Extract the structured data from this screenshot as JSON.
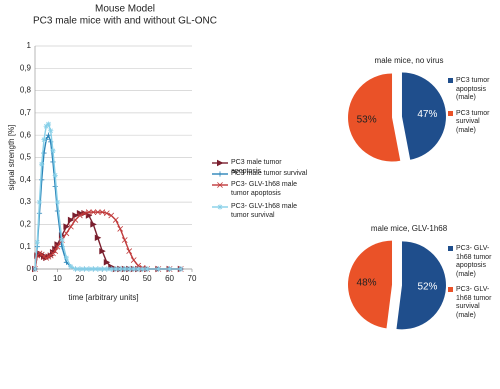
{
  "chart_data": [
    {
      "type": "line",
      "title": "Mouse Model",
      "subtitle": "PC3 male mice with and without GL-ONC",
      "xlabel": "time [arbitrary units]",
      "ylabel": "signal strength [%]",
      "x": [
        0,
        1,
        2,
        3,
        4,
        5,
        6,
        7,
        8,
        9,
        10,
        12,
        14,
        16,
        18,
        20,
        22,
        24,
        26,
        28,
        30,
        32,
        34,
        36,
        38,
        40,
        42,
        44,
        46,
        48,
        50,
        55,
        60,
        65
      ],
      "series": [
        {
          "name": "PC3 male tumor apoptosis",
          "color": "#7a1f2e",
          "marker": "triangle",
          "values": [
            0,
            0.06,
            0.07,
            0.065,
            0.055,
            0.05,
            0.055,
            0.06,
            0.075,
            0.09,
            0.11,
            0.15,
            0.19,
            0.22,
            0.24,
            0.25,
            0.25,
            0.24,
            0.2,
            0.14,
            0.08,
            0.03,
            0.01,
            0,
            0,
            0,
            0,
            0,
            0,
            0,
            0,
            0,
            0,
            0
          ]
        },
        {
          "name": "PC3 male tumor survival",
          "color": "#2b84b8",
          "marker": "plus",
          "values": [
            0,
            0.1,
            0.25,
            0.4,
            0.52,
            0.58,
            0.6,
            0.57,
            0.48,
            0.37,
            0.26,
            0.1,
            0.03,
            0.01,
            0,
            0,
            0,
            0,
            0,
            0,
            0,
            0,
            0,
            0,
            0,
            0,
            0,
            0,
            0,
            0,
            0,
            0,
            0,
            0
          ]
        },
        {
          "name": "PC3- GLV-1h68 male tumor apoptosis",
          "color": "#c0393a",
          "marker": "cross",
          "values": [
            0,
            0.06,
            0.07,
            0.065,
            0.055,
            0.05,
            0.055,
            0.06,
            0.07,
            0.08,
            0.1,
            0.13,
            0.16,
            0.19,
            0.22,
            0.24,
            0.25,
            0.255,
            0.255,
            0.255,
            0.255,
            0.25,
            0.24,
            0.22,
            0.18,
            0.13,
            0.08,
            0.04,
            0.015,
            0.005,
            0,
            0,
            0,
            0
          ]
        },
        {
          "name": "PC3- GLV-1h68  male tumor survival",
          "color": "#86cfe8",
          "marker": "asterisk",
          "values": [
            0,
            0.12,
            0.3,
            0.47,
            0.58,
            0.64,
            0.65,
            0.62,
            0.53,
            0.42,
            0.3,
            0.13,
            0.05,
            0.01,
            0,
            0,
            0,
            0,
            0,
            0,
            0,
            0,
            0,
            0,
            0,
            0,
            0,
            0,
            0,
            0,
            0,
            0,
            0,
            0
          ]
        }
      ],
      "xlim": [
        0,
        70
      ],
      "xticks": [
        0,
        10,
        20,
        30,
        40,
        50,
        60,
        70
      ],
      "ylim": [
        0,
        1
      ],
      "yticks": [
        0,
        {
          "value": 0.1,
          "label": "0,1"
        },
        {
          "value": 0.2,
          "label": "0,2"
        },
        {
          "value": 0.3,
          "label": "0,3"
        },
        {
          "value": 0.4,
          "label": "0,4"
        },
        {
          "value": 0.5,
          "label": "0,5"
        },
        {
          "value": 0.6,
          "label": "0,6"
        },
        {
          "value": 0.7,
          "label": "0,7"
        },
        {
          "value": 0.8,
          "label": "0,8"
        },
        {
          "value": 0.9,
          "label": "0,9"
        },
        1
      ],
      "grid": true
    },
    {
      "type": "pie",
      "title": "male mice, no virus",
      "categories": [
        "PC3 tumor apoptosis (male)",
        "PC3 tumor survival (male)"
      ],
      "values": [
        47,
        53
      ],
      "value_labels": [
        "47%",
        "53%"
      ],
      "colors": [
        "#1f4e8c",
        "#ea5228"
      ]
    },
    {
      "type": "pie",
      "title": "male mice, GLV-1h68",
      "categories": [
        "PC3- GLV-1h68 tumor apoptosis (male)",
        "PC3- GLV-1h68 tumor survival (male)"
      ],
      "values": [
        52,
        48
      ],
      "value_labels": [
        "52%",
        "48%"
      ],
      "colors": [
        "#1f4e8c",
        "#ea5228"
      ]
    }
  ]
}
